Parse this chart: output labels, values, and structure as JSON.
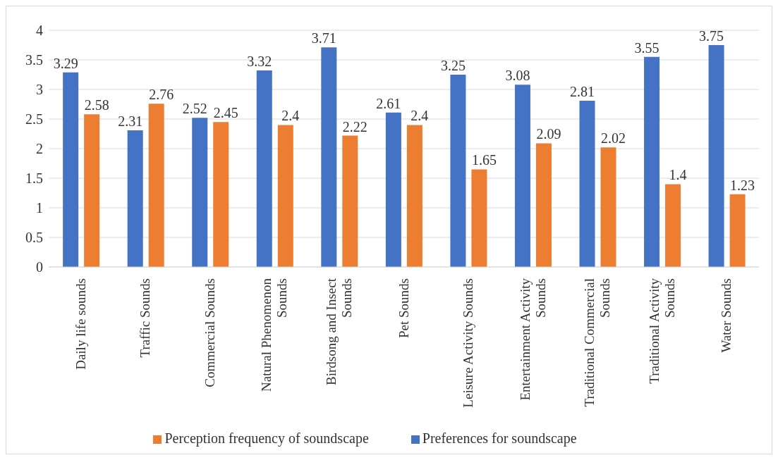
{
  "chart_data": {
    "type": "bar",
    "categories": [
      "Daily life sounds",
      "Traffic Sounds",
      "Commercial Sounds",
      "Natural Phenomenon Sounds",
      "Birdsong and Insect Sounds",
      "Pet Sounds",
      "Leisure Activity Sounds",
      "Entertainment Activity Sounds",
      "Traditional Commercial Sounds",
      "Traditional Activity Sounds",
      "Water Sounds"
    ],
    "series": [
      {
        "name": "Preferences for soundscape",
        "color": "#4472c4",
        "values": [
          3.29,
          2.31,
          2.52,
          3.32,
          3.71,
          2.61,
          3.25,
          3.08,
          2.81,
          3.55,
          3.75
        ]
      },
      {
        "name": "Perception frequency of soundscape",
        "color": "#ed7d31",
        "values": [
          2.58,
          2.76,
          2.45,
          2.4,
          2.22,
          2.4,
          1.65,
          2.09,
          2.02,
          1.4,
          1.23
        ]
      }
    ],
    "ylim": [
      0,
      4
    ],
    "yticks": [
      0,
      0.5,
      1,
      1.5,
      2,
      2.5,
      3,
      3.5,
      4
    ],
    "grid": "y",
    "legend": "bottom",
    "data_labels": true
  }
}
